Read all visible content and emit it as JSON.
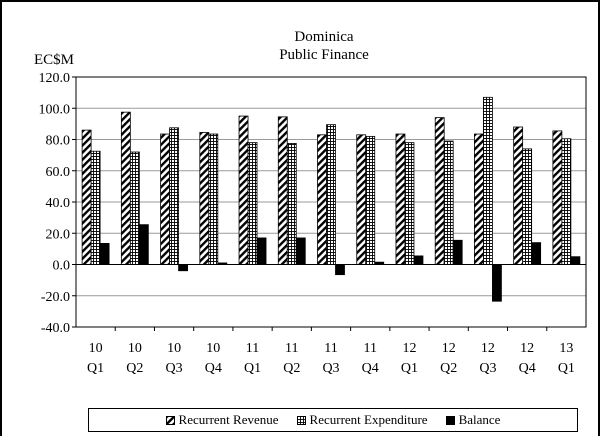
{
  "chart_data": {
    "type": "bar",
    "title": "Dominica",
    "subtitle": "Public Finance",
    "ylabel": "EC$M",
    "ylim": [
      -40,
      120
    ],
    "yticks": [
      -40,
      -20,
      0,
      20,
      40,
      60,
      80,
      100,
      120
    ],
    "ytick_labels": [
      "-40.0",
      "-20.0",
      "0.0",
      "20.0",
      "40.0",
      "60.0",
      "80.0",
      "100.0",
      "120.0"
    ],
    "categories": [
      [
        "10",
        "Q1"
      ],
      [
        "10",
        "Q2"
      ],
      [
        "10",
        "Q3"
      ],
      [
        "10",
        "Q4"
      ],
      [
        "11",
        "Q1"
      ],
      [
        "11",
        "Q2"
      ],
      [
        "11",
        "Q3"
      ],
      [
        "11",
        "Q4"
      ],
      [
        "12",
        "Q1"
      ],
      [
        "12",
        "Q2"
      ],
      [
        "12",
        "Q3"
      ],
      [
        "12",
        "Q4"
      ],
      [
        "13",
        "Q1"
      ]
    ],
    "series": [
      {
        "name": "Recurrent Revenue",
        "pattern": "diagonal",
        "values": [
          86,
          97.5,
          83.5,
          84.5,
          95,
          94.5,
          83,
          83,
          83.5,
          94,
          83.5,
          88,
          85.5
        ]
      },
      {
        "name": "Recurrent Expenditure",
        "pattern": "grid",
        "values": [
          72.5,
          72,
          87.5,
          83.5,
          78,
          77.5,
          89.5,
          82,
          78,
          79,
          107,
          74,
          80.5
        ]
      },
      {
        "name": "Balance",
        "pattern": "solid",
        "values": [
          13.5,
          25.5,
          -4,
          1,
          17,
          17,
          -6.5,
          1.5,
          5.5,
          15.5,
          -23.5,
          14,
          5
        ]
      }
    ],
    "grid": true,
    "legend_position": "bottom"
  }
}
